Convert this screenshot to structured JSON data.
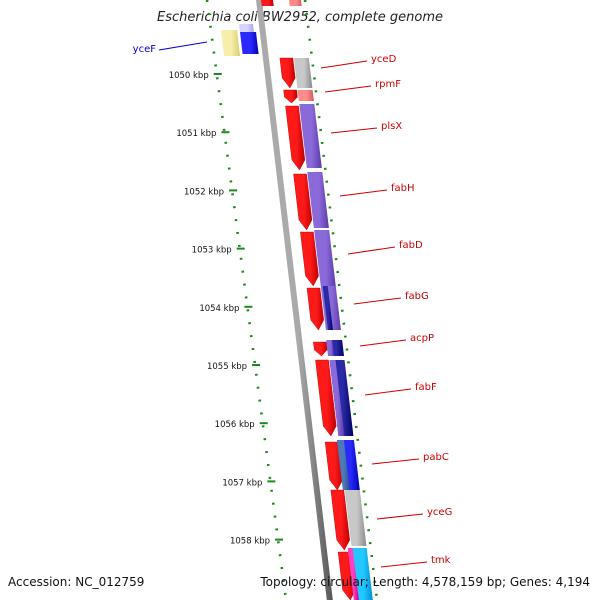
{
  "title": "Escherichia coli BW2952, complete genome",
  "footer": {
    "accession": "Accession: NC_012759",
    "topology": "Topology: circular; Length: 4,578,159 bp; Genes: 4,194"
  },
  "colors": {
    "forward_cds": "#ff0000",
    "backbone": "#8c8c8c",
    "ticks": "#1a8a1a",
    "gene_label": "#cc0000",
    "left_label": "#0000cc"
  },
  "ticks": [
    "1050 kbp",
    "1051 kbp",
    "1052 kbp",
    "1053 kbp",
    "1054 kbp",
    "1055 kbp",
    "1056 kbp",
    "1057 kbp",
    "1058 kbp"
  ],
  "left_genes": [
    {
      "name": "yceF"
    }
  ],
  "right_genes": [
    {
      "name": "yceD"
    },
    {
      "name": "rpmF"
    },
    {
      "name": "plsX"
    },
    {
      "name": "fabH"
    },
    {
      "name": "fabD"
    },
    {
      "name": "fabG"
    },
    {
      "name": "acpP"
    },
    {
      "name": "fabF"
    },
    {
      "name": "pabC"
    },
    {
      "name": "yceG"
    },
    {
      "name": "tmk"
    }
  ]
}
